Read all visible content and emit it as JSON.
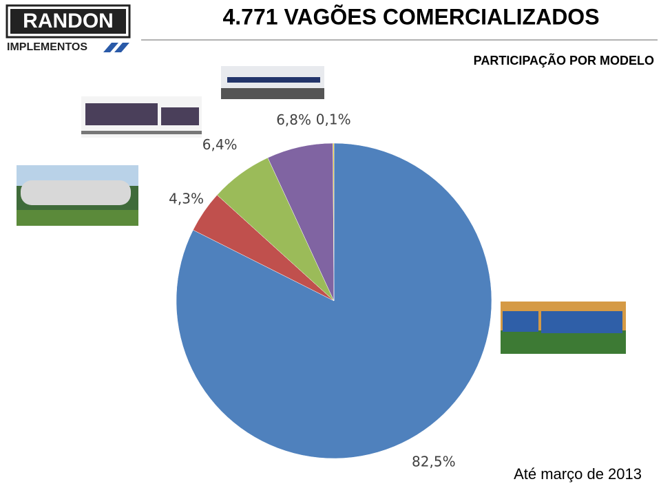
{
  "logo": {
    "name": "RANDON",
    "tagline": "IMPLEMENTOS"
  },
  "chart_data": {
    "type": "pie",
    "title": "4.771 VAGÕES COMERCIALIZADOS",
    "subtitle": "PARTICIPAÇÃO POR MODELO",
    "annotation": "Até março de 2013",
    "values": [
      82.5,
      4.3,
      6.4,
      6.8,
      0.1
    ],
    "value_labels": [
      "82,5%",
      "4,3%",
      "6,4%",
      "6,8%",
      "0,1%"
    ],
    "colors": [
      "#4f81bd",
      "#c0504d",
      "#9bbb59",
      "#8064a2",
      "#f2c500"
    ]
  }
}
